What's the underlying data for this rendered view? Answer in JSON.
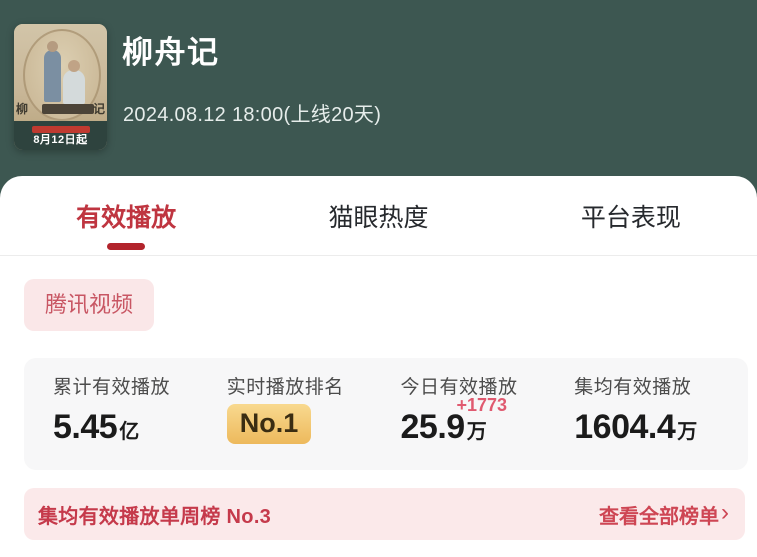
{
  "header": {
    "title": "柳舟记",
    "subtitle": "2024.08.12 18:00(上线20天)",
    "poster": {
      "calligraphy_left": "柳",
      "calligraphy_right": "记",
      "release_label": "8月12日起"
    }
  },
  "tabs": [
    {
      "label": "有效播放",
      "active": true
    },
    {
      "label": "猫眼热度",
      "active": false
    },
    {
      "label": "平台表现",
      "active": false
    }
  ],
  "platform_badge": "腾讯视频",
  "stats": [
    {
      "label": "累计有效播放",
      "value": "5.45",
      "unit": "亿"
    },
    {
      "label": "实时播放排名",
      "badge": "No.1"
    },
    {
      "label": "今日有效播放",
      "value": "25.9",
      "unit": "万",
      "delta": "+1773"
    },
    {
      "label": "集均有效播放",
      "value": "1604.4",
      "unit": "万"
    }
  ],
  "ranking_bar": {
    "text": "集均有效播放单周榜 No.3",
    "link": "查看全部榜单",
    "chevron": "›"
  },
  "colors": {
    "header_bg": "#3d5751",
    "active_tab_red": "#bf3540",
    "tab_indicator_red": "#b2242c",
    "platform_badge_bg": "#fae7e8",
    "platform_badge_text": "#c85663",
    "stats_card_bg": "#f7f7f8",
    "rank_gold_top": "#f8d98f",
    "rank_gold_bottom": "#edb95c",
    "delta_pink": "#e05a70",
    "ranking_bar_bg": "#fbe9ea",
    "ranking_bar_text": "#c53a4b"
  }
}
